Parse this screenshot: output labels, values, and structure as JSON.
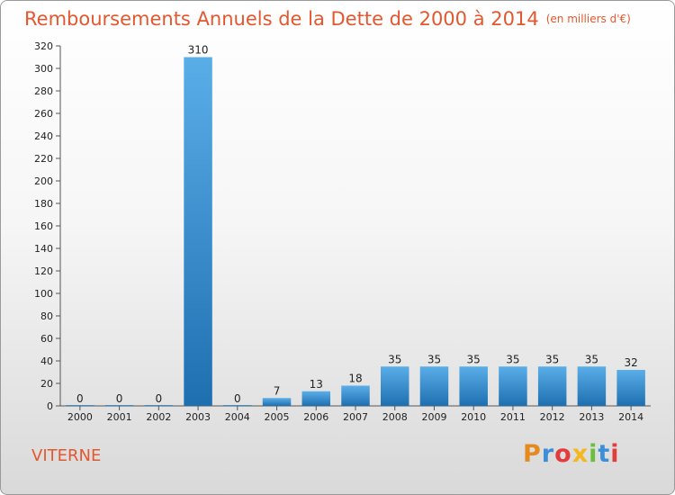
{
  "title": "Remboursements Annuels de la Dette de 2000 à 2014",
  "subtitle": "(en milliers d'€)",
  "commune": "VITERNE",
  "logo_text": "Proxiti",
  "colors": {
    "title": "#e4572e",
    "bar_top": "#5aaee8",
    "bar_bottom": "#1e6fb0"
  },
  "chart_data": {
    "type": "bar",
    "title": "Remboursements Annuels de la Dette de 2000 à 2014",
    "subtitle": "(en milliers d'€)",
    "categories": [
      "2000",
      "2001",
      "2002",
      "2003",
      "2004",
      "2005",
      "2006",
      "2007",
      "2008",
      "2009",
      "2010",
      "2011",
      "2012",
      "2013",
      "2014"
    ],
    "values": [
      0,
      0,
      0,
      310,
      0,
      7,
      13,
      18,
      35,
      35,
      35,
      35,
      35,
      35,
      32
    ],
    "ylim": [
      0,
      320
    ],
    "yticks": [
      0,
      20,
      40,
      60,
      80,
      100,
      120,
      140,
      160,
      180,
      200,
      220,
      240,
      260,
      280,
      300,
      320
    ],
    "grid": false,
    "data_labels": true
  }
}
